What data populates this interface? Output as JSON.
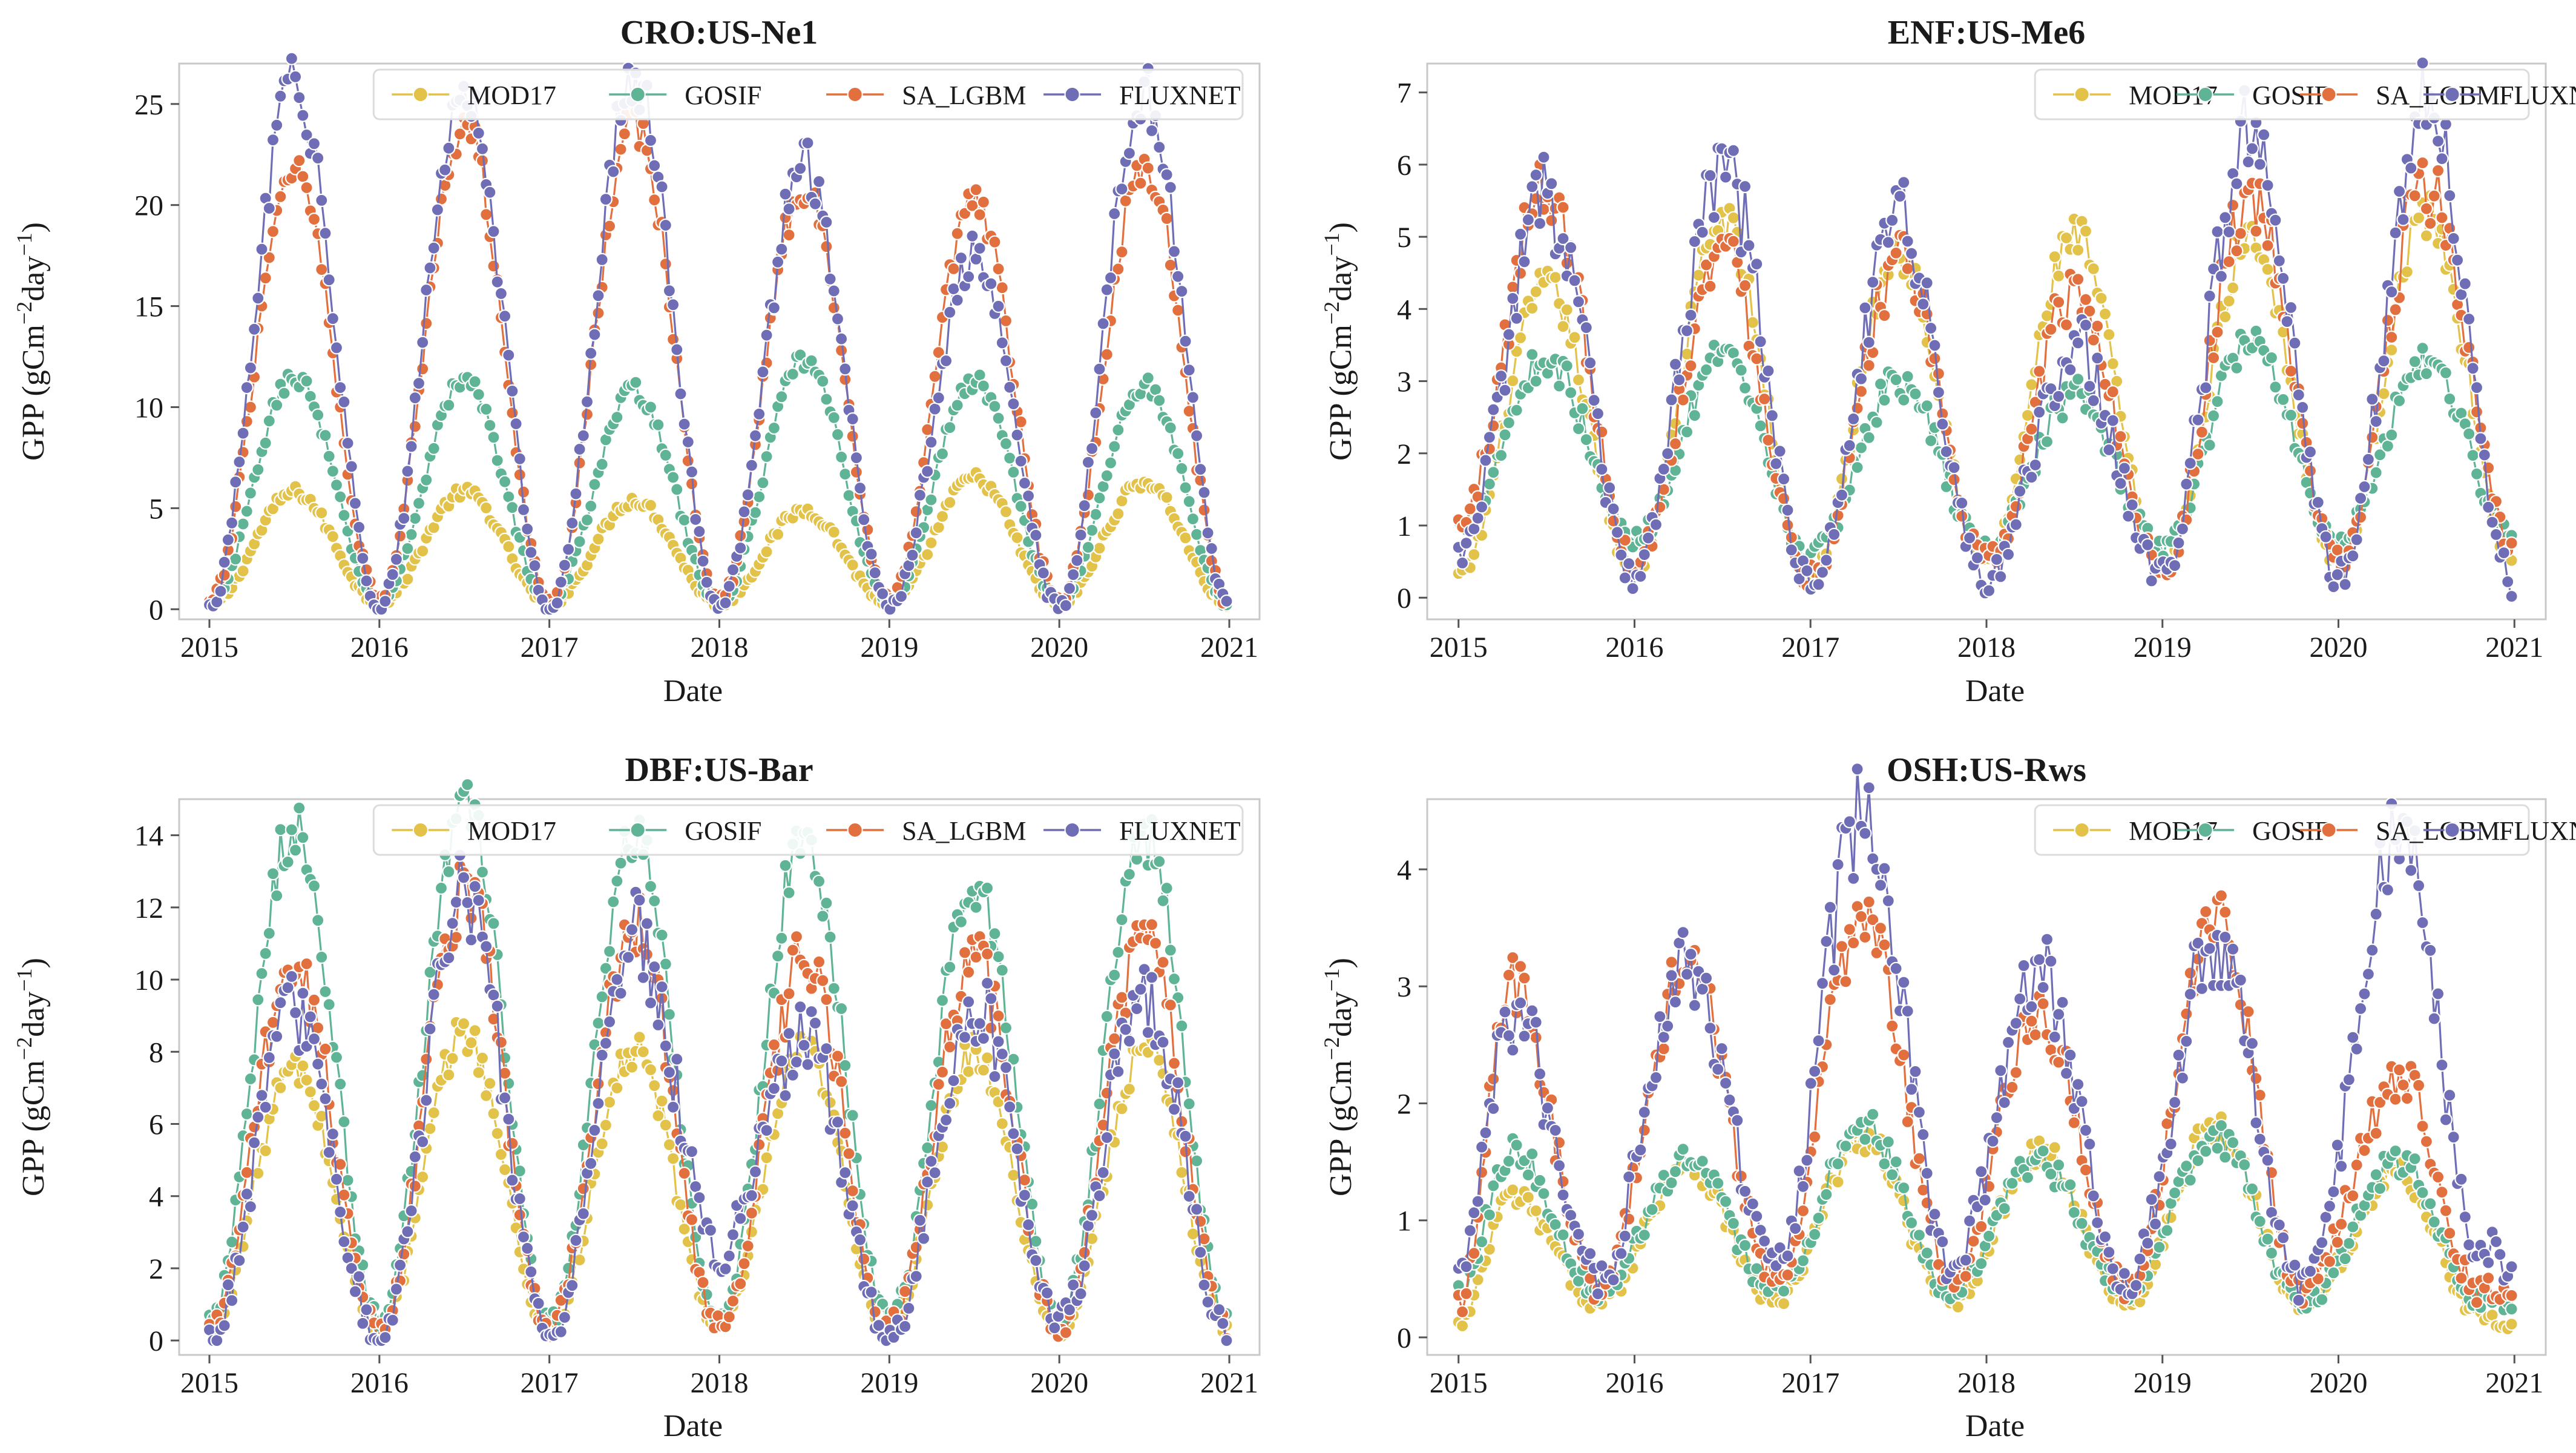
{
  "figure": {
    "ylabel_lead": "GPP (gCm",
    "ylabel_sup1": "−2",
    "ylabel_mid": "day",
    "ylabel_sup2": "−1",
    "ylabel_tail": ")",
    "xlabel": "Date"
  },
  "series_styles": [
    {
      "name": "MOD17",
      "color": "#E3C24A"
    },
    {
      "name": "GOSIF",
      "color": "#5FB496"
    },
    {
      "name": "SA_LGBM",
      "color": "#E2703F"
    },
    {
      "name": "FLUXNET",
      "color": "#6E6DB6"
    }
  ],
  "chart_data": [
    {
      "type": "line",
      "title": "CRO:US-Ne1",
      "xlabel": "Date",
      "ylabel": "GPP (gCm−2day−1)",
      "xlim": [
        2015,
        2021
      ],
      "ylim": [
        -0.5,
        27.0
      ],
      "x_ticks": [
        2015,
        2016,
        2017,
        2018,
        2019,
        2020,
        2021
      ],
      "x_tick_labels": [
        "2015",
        "2016",
        "2017",
        "2018",
        "2019",
        "2020",
        "2021"
      ],
      "y_ticks": [
        0,
        5,
        10,
        15,
        20,
        25
      ],
      "y_tick_labels": [
        "0",
        "5",
        "10",
        "15",
        "20",
        "25"
      ],
      "legend": [
        "MOD17",
        "GOSIF",
        "SA_LGBM",
        "FLUXNET"
      ],
      "legend_position": "top",
      "x": [
        2015.0,
        2015.5,
        2016.0,
        2016.5,
        2017.0,
        2017.5,
        2018.0,
        2018.5,
        2019.0,
        2019.5,
        2020.0,
        2020.5,
        2021.0
      ],
      "series": [
        {
          "name": "MOD17",
          "values": [
            0.2,
            5.8,
            0.3,
            5.8,
            0.3,
            5.4,
            0.3,
            4.9,
            0.3,
            6.5,
            0.3,
            6.3,
            0.2
          ]
        },
        {
          "name": "GOSIF",
          "values": [
            0.2,
            11.5,
            0.4,
            11.3,
            0.4,
            10.8,
            0.4,
            12.3,
            0.4,
            11.3,
            0.4,
            11.1,
            0.2
          ]
        },
        {
          "name": "SA_LGBM",
          "values": [
            0.3,
            22.0,
            0.5,
            24.0,
            0.4,
            24.0,
            0.4,
            21.0,
            0.4,
            20.0,
            0.4,
            22.0,
            0.3
          ]
        },
        {
          "name": "FLUXNET",
          "values": [
            0.1,
            26.0,
            0.2,
            25.5,
            0.1,
            26.2,
            0.2,
            22.0,
            0.1,
            17.5,
            0.1,
            25.5,
            0.1
          ]
        }
      ]
    },
    {
      "type": "line",
      "title": "ENF:US-Me6",
      "xlabel": "Date",
      "ylabel": "GPP (gCm−2day−1)",
      "xlim": [
        2015,
        2021
      ],
      "ylim": [
        -0.3,
        7.4
      ],
      "x_ticks": [
        2015,
        2016,
        2017,
        2018,
        2019,
        2020,
        2021
      ],
      "x_tick_labels": [
        "2015",
        "2016",
        "2017",
        "2018",
        "2019",
        "2020",
        "2021"
      ],
      "y_ticks": [
        0,
        1,
        2,
        3,
        4,
        5,
        6,
        7
      ],
      "y_tick_labels": [
        "0",
        "1",
        "2",
        "3",
        "4",
        "5",
        "6",
        "7"
      ],
      "legend": [
        "MOD17",
        "GOSIF",
        "SA_LGBM",
        "FLUXNET"
      ],
      "legend_position": "top",
      "x": [
        2015.0,
        2015.5,
        2016.0,
        2016.5,
        2017.0,
        2017.5,
        2018.0,
        2018.5,
        2019.0,
        2019.5,
        2020.0,
        2020.5,
        2021.0
      ],
      "series": [
        {
          "name": "MOD17",
          "values": [
            0.3,
            4.3,
            0.4,
            5.2,
            0.3,
            4.8,
            0.5,
            5.0,
            0.4,
            5.0,
            0.5,
            5.3,
            0.5
          ]
        },
        {
          "name": "GOSIF",
          "values": [
            1.0,
            3.3,
            0.8,
            3.3,
            0.6,
            3.0,
            0.7,
            2.8,
            0.7,
            3.6,
            0.8,
            3.3,
            0.8
          ]
        },
        {
          "name": "SA_LGBM",
          "values": [
            1.0,
            5.7,
            0.5,
            4.8,
            0.3,
            4.6,
            0.5,
            4.2,
            0.4,
            5.5,
            0.5,
            5.7,
            0.6
          ]
        },
        {
          "name": "FLUXNET",
          "values": [
            0.6,
            5.5,
            0.3,
            6.0,
            0.2,
            5.2,
            0.2,
            3.5,
            0.3,
            6.6,
            0.3,
            6.9,
            0.2
          ]
        }
      ]
    },
    {
      "type": "line",
      "title": "DBF:US-Bar",
      "xlabel": "Date",
      "ylabel": "GPP (gCm−2day−1)",
      "xlim": [
        2015,
        2021
      ],
      "ylim": [
        -0.4,
        15.0
      ],
      "x_ticks": [
        2015,
        2016,
        2017,
        2018,
        2019,
        2020,
        2021
      ],
      "x_tick_labels": [
        "2015",
        "2016",
        "2017",
        "2018",
        "2019",
        "2020",
        "2021"
      ],
      "y_ticks": [
        0,
        2,
        4,
        6,
        8,
        10,
        12,
        14
      ],
      "y_tick_labels": [
        "0",
        "2",
        "4",
        "6",
        "8",
        "10",
        "12",
        "14"
      ],
      "legend": [
        "MOD17",
        "GOSIF",
        "SA_LGBM",
        "FLUXNET"
      ],
      "legend_position": "top",
      "x": [
        2015.0,
        2015.5,
        2016.0,
        2016.5,
        2017.0,
        2017.5,
        2018.0,
        2018.5,
        2019.0,
        2019.5,
        2020.0,
        2020.5,
        2021.0
      ],
      "series": [
        {
          "name": "MOD17",
          "values": [
            0.4,
            7.5,
            0.3,
            8.5,
            0.3,
            8.0,
            0.4,
            8.0,
            0.3,
            8.0,
            0.3,
            8.0,
            0.3
          ]
        },
        {
          "name": "GOSIF",
          "values": [
            0.6,
            14.3,
            0.6,
            14.8,
            0.5,
            13.8,
            0.5,
            14.0,
            0.6,
            12.7,
            0.6,
            14.0,
            0.5
          ]
        },
        {
          "name": "SA_LGBM",
          "values": [
            0.3,
            10.5,
            0.3,
            12.5,
            0.3,
            11.5,
            0.4,
            10.5,
            0.4,
            10.5,
            0.4,
            11.0,
            0.3
          ]
        },
        {
          "name": "FLUXNET",
          "values": [
            0.1,
            9.0,
            0.1,
            12.3,
            0.1,
            11.2,
            2.5,
            8.5,
            0.1,
            9.3,
            0.5,
            9.5,
            0.1
          ]
        }
      ]
    },
    {
      "type": "line",
      "title": "OSH:US-Rws",
      "xlabel": "Date",
      "ylabel": "GPP (gCm−2day−1)",
      "xlim": [
        2015,
        2021
      ],
      "ylim": [
        -0.15,
        4.6
      ],
      "x_ticks": [
        2015,
        2016,
        2017,
        2018,
        2019,
        2020,
        2021
      ],
      "x_tick_labels": [
        "2015",
        "2016",
        "2017",
        "2018",
        "2019",
        "2020",
        "2021"
      ],
      "y_ticks": [
        0,
        1,
        2,
        3,
        4
      ],
      "y_tick_labels": [
        "0",
        "1",
        "2",
        "3",
        "4"
      ],
      "legend": [
        "MOD17",
        "GOSIF",
        "SA_LGBM",
        "FLUXNET"
      ],
      "legend_position": "top",
      "x": [
        2015.0,
        2015.3,
        2015.8,
        2016.3,
        2016.8,
        2017.3,
        2017.8,
        2018.3,
        2018.8,
        2019.3,
        2019.8,
        2020.35,
        2020.8,
        2021.0
      ],
      "series": [
        {
          "name": "MOD17",
          "values": [
            0.1,
            1.2,
            0.3,
            1.5,
            0.3,
            1.7,
            0.3,
            1.6,
            0.3,
            1.8,
            0.3,
            1.4,
            0.2,
            0.05
          ]
        },
        {
          "name": "GOSIF",
          "values": [
            0.4,
            1.6,
            0.4,
            1.5,
            0.4,
            1.8,
            0.4,
            1.5,
            0.4,
            1.7,
            0.3,
            1.5,
            0.3,
            0.3
          ]
        },
        {
          "name": "SA_LGBM",
          "values": [
            0.3,
            3.0,
            0.4,
            3.2,
            0.5,
            3.6,
            0.5,
            2.8,
            0.4,
            3.5,
            0.4,
            2.2,
            0.4,
            0.4
          ]
        },
        {
          "name": "FLUXNET",
          "values": [
            0.5,
            2.8,
            0.5,
            3.2,
            0.6,
            4.5,
            0.6,
            3.1,
            0.5,
            3.4,
            0.4,
            4.3,
            0.8,
            0.6
          ]
        }
      ]
    }
  ]
}
